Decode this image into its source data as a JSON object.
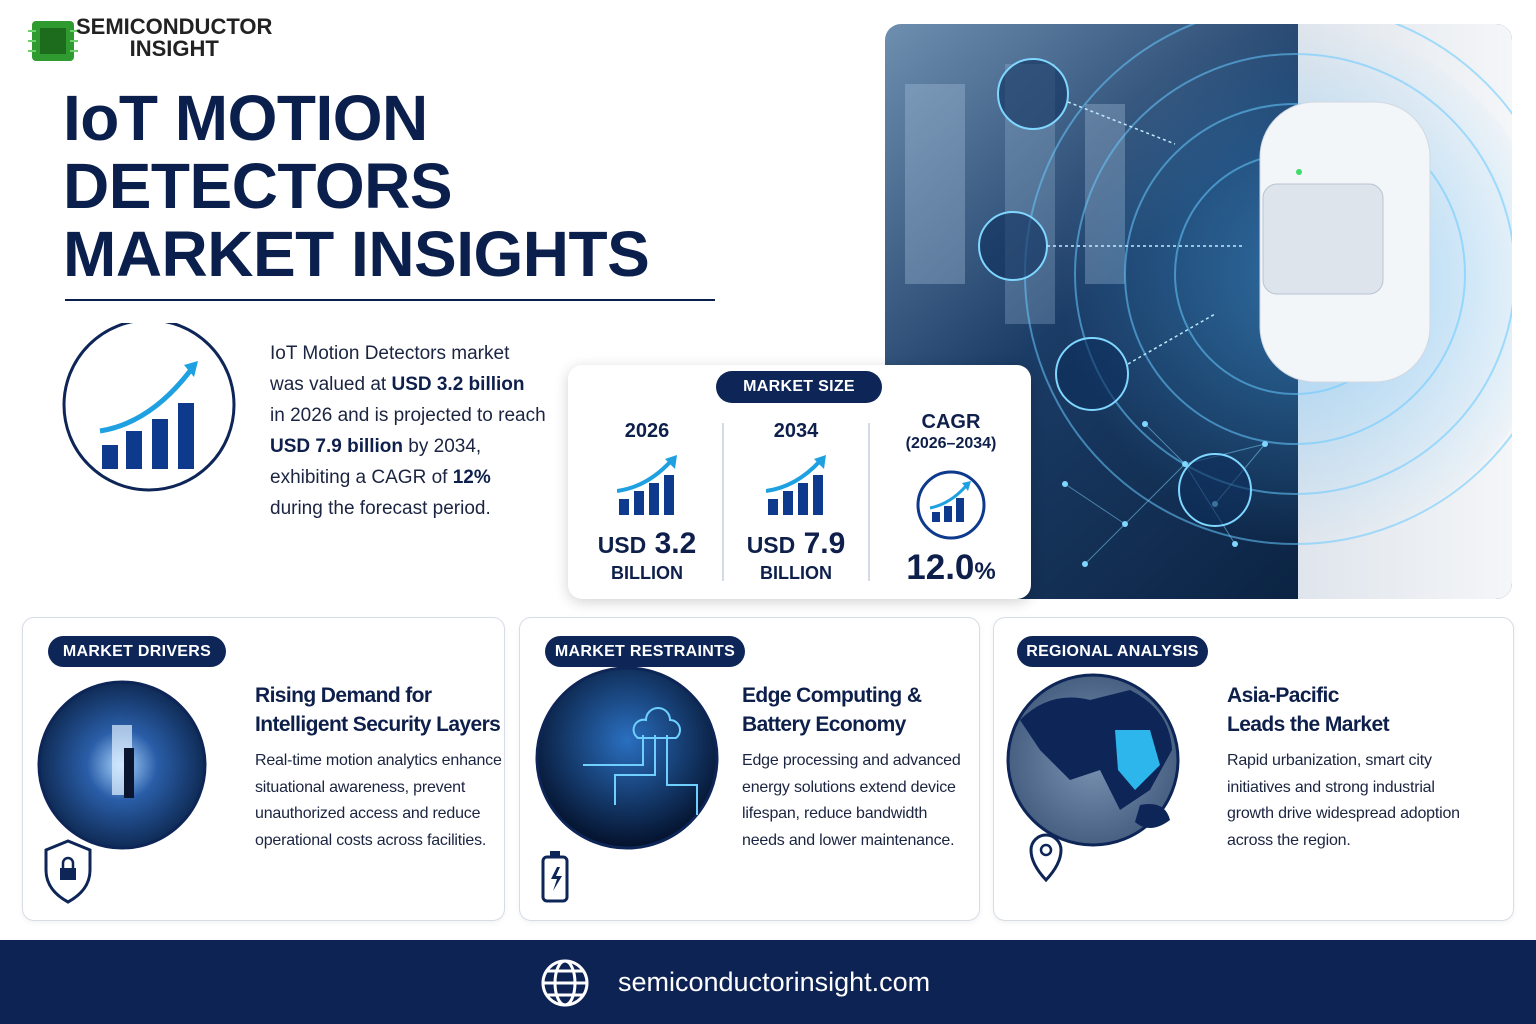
{
  "header": {
    "logo_line1": "SEMICONDUCTOR",
    "logo_line2": "INSIGHT",
    "title_lines": [
      "IoT MOTION",
      "DETECTORS",
      "MARKET INSIGHTS"
    ]
  },
  "summary": {
    "lines": [
      [
        {
          "text": "IoT Motion Detectors market"
        }
      ],
      [
        {
          "text": "was valued at "
        },
        {
          "text": "USD 3.2 billion",
          "bold": true
        }
      ],
      [
        {
          "text": "in 2026 and is projected to reach"
        }
      ],
      [
        {
          "text": "USD 7.9 billion",
          "bold": true
        },
        {
          "text": " by 2034,"
        }
      ],
      [
        {
          "text": "exhibiting a CAGR of "
        },
        {
          "text": "12%",
          "bold": true
        }
      ],
      [
        {
          "text": "during the forecast period."
        }
      ]
    ]
  },
  "market_size": {
    "badge": "MARKET SIZE",
    "stats": [
      {
        "year": "2026",
        "currency": "USD",
        "amount": "3.2",
        "unit": "BILLION"
      },
      {
        "year": "2034",
        "currency": "USD",
        "amount": "7.9",
        "unit": "BILLION"
      }
    ],
    "cagr": {
      "label": "CAGR",
      "period": "(2026–2034)",
      "value": "12.0",
      "unit": "%"
    }
  },
  "cards": [
    {
      "badge": "MARKET DRIVERS",
      "heading": [
        "Rising Demand for",
        "Intelligent Security Layers"
      ],
      "body": [
        "Real-time motion analytics enhance",
        "situational awareness, prevent",
        "unauthorized access and reduce",
        "operational costs across facilities."
      ]
    },
    {
      "badge": "MARKET RESTRAINTS",
      "heading": [
        "Edge Computing &",
        "Battery Economy"
      ],
      "body": [
        "Edge processing and advanced",
        "energy solutions extend device",
        "lifespan, reduce bandwidth",
        "needs and lower maintenance."
      ]
    },
    {
      "badge": "REGIONAL ANALYSIS",
      "heading": [
        "Asia-Pacific",
        "Leads the Market"
      ],
      "body": [
        "Rapid urbanization, smart city",
        "initiatives and strong industrial",
        "growth drive widespread adoption",
        "across the region."
      ]
    }
  ],
  "footer": {
    "url": "semiconductorinsight.com"
  }
}
